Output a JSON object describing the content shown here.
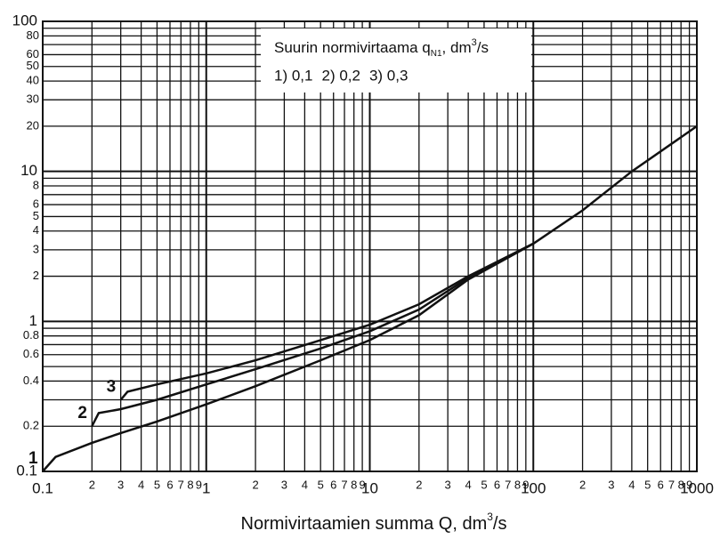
{
  "chart_data": {
    "type": "line",
    "xlabel": {
      "text": "Normivirtaamien summa Q, dm",
      "sup": "3",
      "end": "/s"
    },
    "legend_title": {
      "text": "Suurin normivirtaama q",
      "sub": "N1",
      "mid": ", dm",
      "sup": "3",
      "end": "/s"
    },
    "xscale": "log",
    "yscale": "log",
    "grid": true,
    "legend": "upper center",
    "xlim": [
      0.1,
      1000
    ],
    "ylim": [
      0.1,
      100
    ],
    "xticks": [
      0.1,
      {
        "value": 0.2,
        "label": "2"
      },
      {
        "value": 0.3,
        "label": "3"
      },
      {
        "value": 0.4,
        "label": "4"
      },
      {
        "value": 0.5,
        "label": "5"
      },
      {
        "value": 0.6,
        "label": "6"
      },
      {
        "value": 0.7,
        "label": "7"
      },
      {
        "value": 0.8,
        "label": "8"
      },
      {
        "value": 0.9,
        "label": "9"
      },
      1,
      {
        "value": 2,
        "label": "2"
      },
      {
        "value": 3,
        "label": "3"
      },
      {
        "value": 4,
        "label": "4"
      },
      {
        "value": 5,
        "label": "5"
      },
      {
        "value": 6,
        "label": "6"
      },
      {
        "value": 7,
        "label": "7"
      },
      {
        "value": 8,
        "label": "8"
      },
      {
        "value": 9,
        "label": "9"
      },
      10,
      {
        "value": 20,
        "label": "2"
      },
      {
        "value": 30,
        "label": "3"
      },
      {
        "value": 40,
        "label": "4"
      },
      {
        "value": 50,
        "label": "5"
      },
      {
        "value": 60,
        "label": "6"
      },
      {
        "value": 70,
        "label": "7"
      },
      {
        "value": 80,
        "label": "8"
      },
      {
        "value": 90,
        "label": "9"
      },
      100,
      {
        "value": 200,
        "label": "2"
      },
      {
        "value": 300,
        "label": "3"
      },
      {
        "value": 400,
        "label": "4"
      },
      {
        "value": 500,
        "label": "5"
      },
      {
        "value": 600,
        "label": "6"
      },
      {
        "value": 700,
        "label": "7"
      },
      {
        "value": 800,
        "label": "8"
      },
      {
        "value": 900,
        "label": "9"
      },
      1000
    ],
    "yticks": [
      0.1,
      0.2,
      0.4,
      0.6,
      0.8,
      1,
      2,
      3,
      4,
      5,
      6,
      8,
      10,
      20,
      30,
      40,
      50,
      60,
      80,
      100
    ],
    "yticks_minor": [
      0.3,
      0.5,
      0.7,
      0.9,
      7,
      9,
      70,
      90
    ],
    "series": [
      {
        "name": "1) 0,1",
        "label": "1",
        "color": "#111111",
        "x": [
          0.1,
          0.12,
          0.2,
          0.3,
          0.5,
          1,
          2,
          5,
          10,
          20,
          40,
          100,
          200,
          400,
          1000
        ],
        "values": [
          0.1,
          0.125,
          0.155,
          0.18,
          0.215,
          0.28,
          0.37,
          0.55,
          0.75,
          1.1,
          1.9,
          3.3,
          5.5,
          10,
          20
        ]
      },
      {
        "name": "2) 0,2",
        "label": "2",
        "color": "#111111",
        "x": [
          0.2,
          0.22,
          0.3,
          0.5,
          1,
          2,
          5,
          10,
          20,
          40,
          100
        ],
        "values": [
          0.2,
          0.245,
          0.26,
          0.3,
          0.38,
          0.48,
          0.66,
          0.86,
          1.2,
          1.95,
          3.3
        ]
      },
      {
        "name": "3) 0,3",
        "label": "3",
        "color": "#111111",
        "x": [
          0.3,
          0.33,
          0.5,
          1,
          2,
          5,
          10,
          20,
          40,
          100
        ],
        "values": [
          0.3,
          0.34,
          0.38,
          0.45,
          0.55,
          0.75,
          0.95,
          1.3,
          2.0,
          3.3
        ]
      }
    ]
  }
}
